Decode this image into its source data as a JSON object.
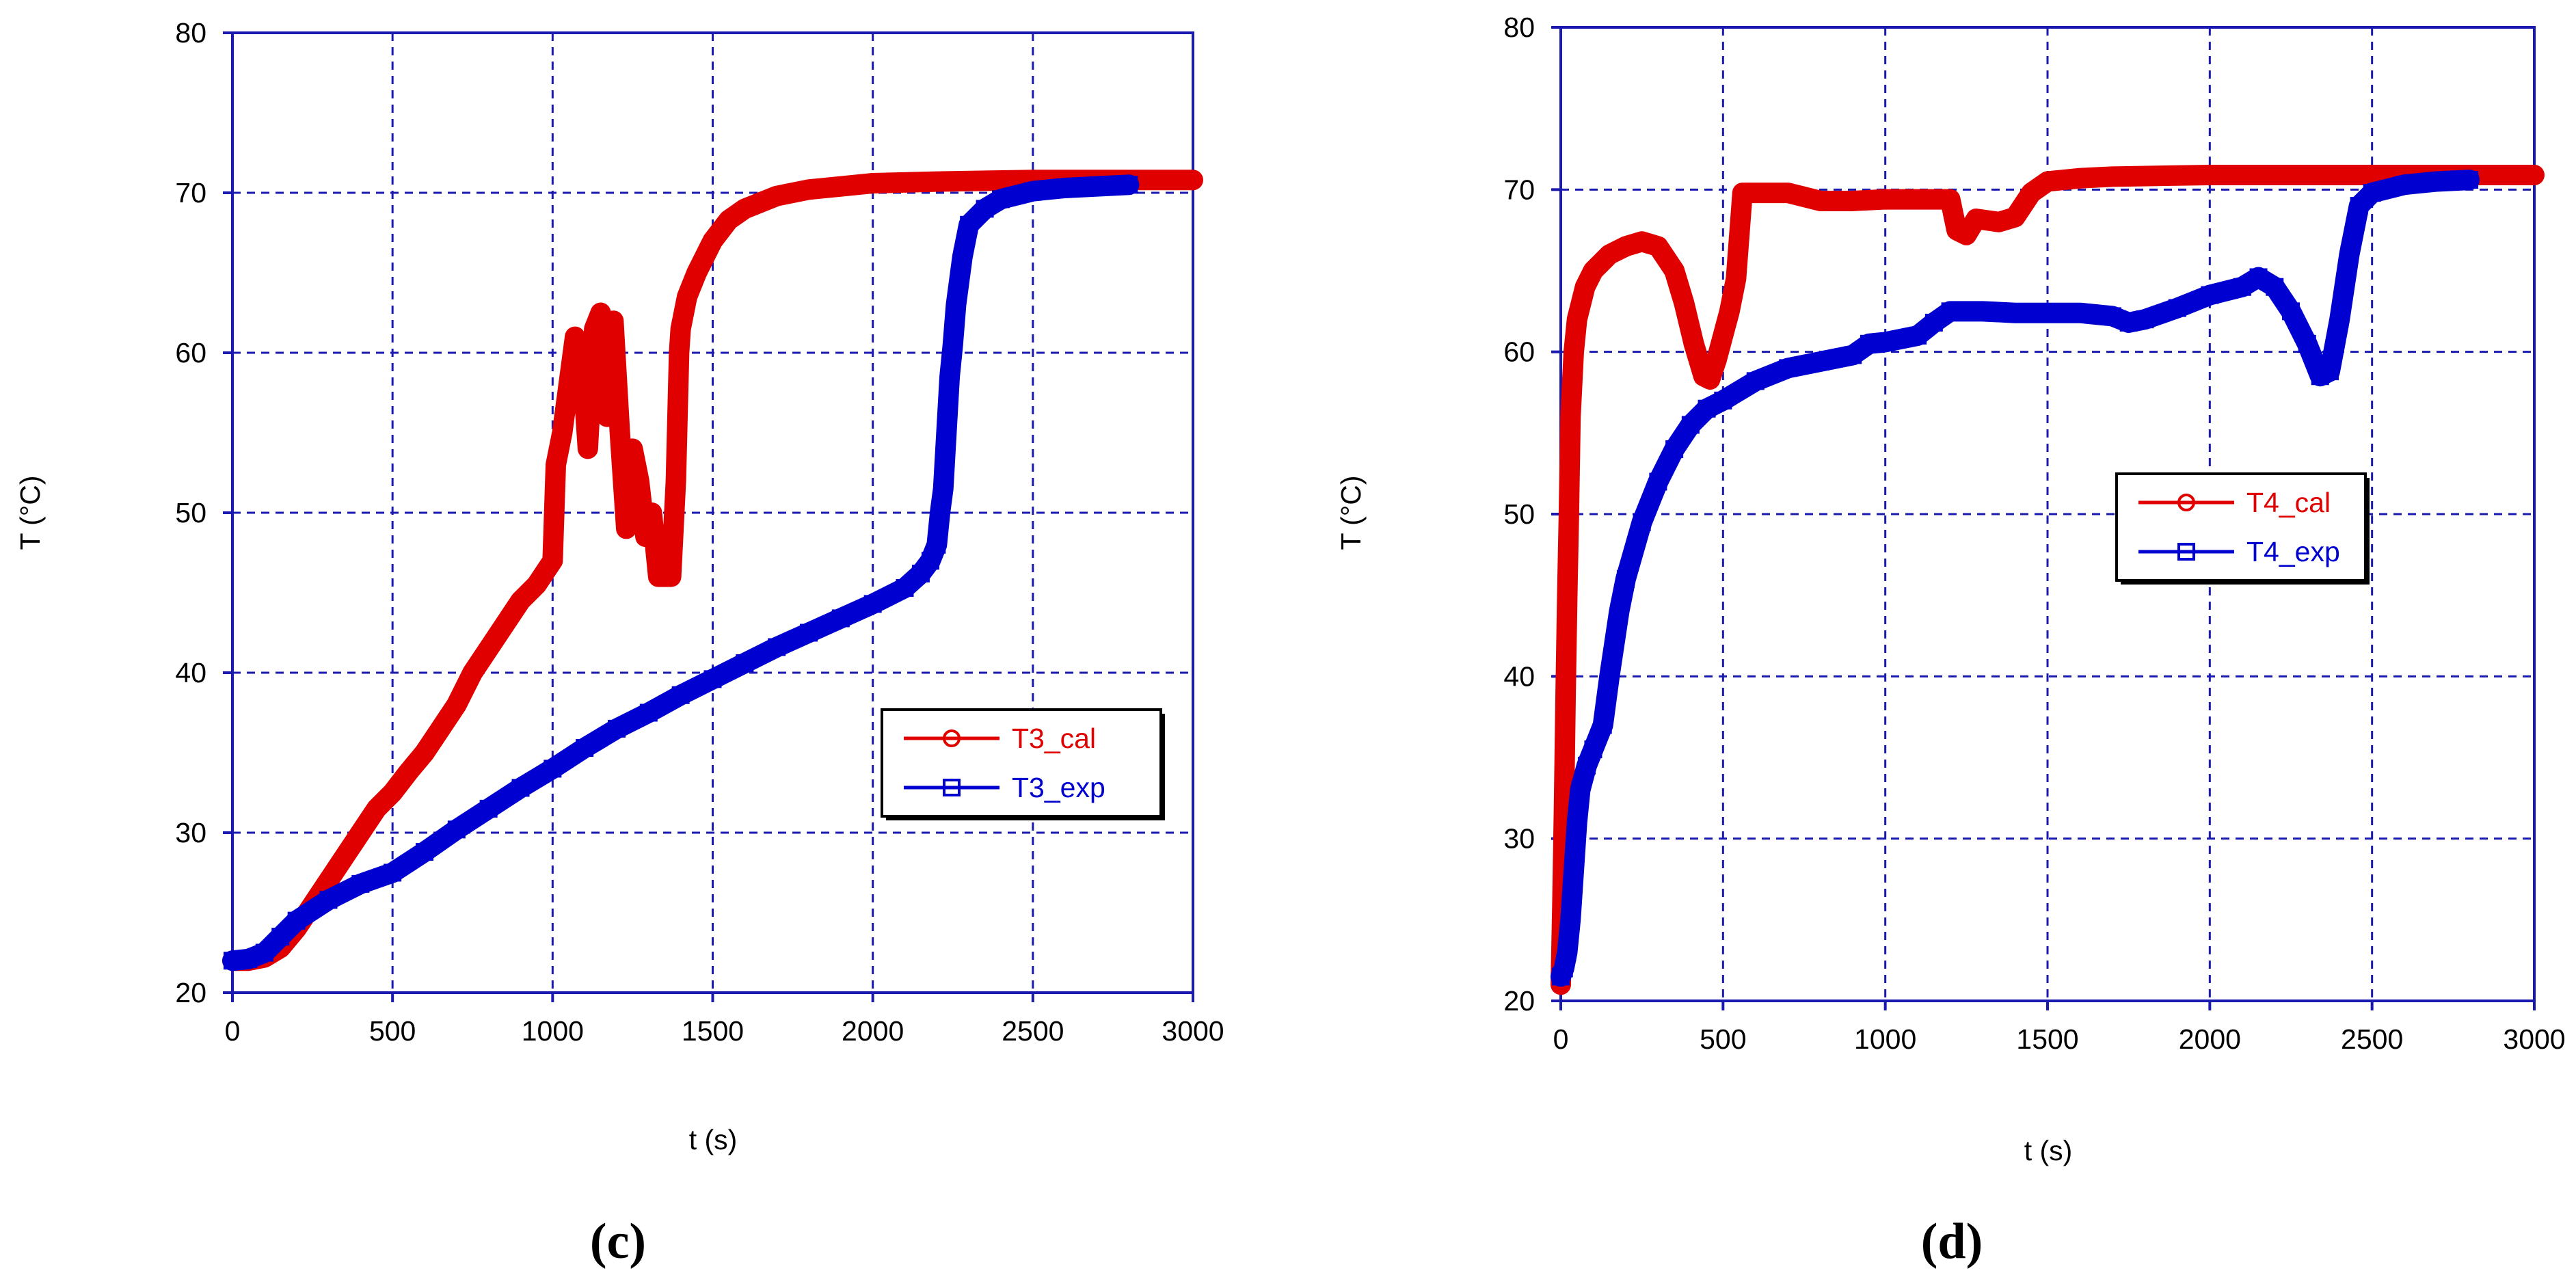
{
  "chart_data": [
    {
      "type": "line",
      "panel_label": "(c)",
      "xlabel": "t (s)",
      "ylabel": "T (°C)",
      "xlim": [
        0,
        3000
      ],
      "ylim": [
        20,
        80
      ],
      "xticks": [
        0,
        500,
        1000,
        1500,
        2000,
        2500,
        3000
      ],
      "yticks": [
        20,
        30,
        40,
        50,
        60,
        70,
        80
      ],
      "grid": true,
      "legend_position": "lower-right",
      "series": [
        {
          "name": "T3_cal",
          "color": "#e00000",
          "marker": "circle",
          "x": [
            0,
            50,
            100,
            150,
            200,
            250,
            300,
            350,
            400,
            450,
            500,
            550,
            600,
            650,
            700,
            750,
            800,
            850,
            900,
            950,
            1000,
            1010,
            1030,
            1050,
            1070,
            1090,
            1110,
            1130,
            1150,
            1170,
            1190,
            1210,
            1230,
            1250,
            1270,
            1290,
            1310,
            1330,
            1350,
            1370,
            1385,
            1395,
            1400,
            1420,
            1450,
            1500,
            1550,
            1600,
            1700,
            1800,
            1900,
            2000,
            2200,
            2500,
            2800,
            3000
          ],
          "y": [
            22.0,
            22.0,
            22.2,
            22.8,
            24.0,
            25.5,
            27.0,
            28.5,
            30.0,
            31.5,
            32.5,
            33.8,
            35.0,
            36.5,
            38.0,
            40.0,
            41.5,
            43.0,
            44.5,
            45.5,
            47.0,
            53.0,
            55.0,
            58.0,
            61.0,
            60.0,
            54.0,
            61.5,
            62.5,
            56.0,
            62.0,
            55.0,
            49.0,
            54.0,
            52.0,
            48.5,
            50.0,
            46.0,
            46.0,
            46.0,
            52.0,
            60.0,
            61.5,
            63.5,
            65.0,
            67.0,
            68.3,
            69.0,
            69.8,
            70.2,
            70.4,
            70.6,
            70.7,
            70.8,
            70.8,
            70.8
          ]
        },
        {
          "name": "T3_exp",
          "color": "#0000d0",
          "marker": "square",
          "x": [
            0,
            50,
            100,
            150,
            200,
            300,
            400,
            500,
            600,
            700,
            800,
            900,
            1000,
            1100,
            1200,
            1300,
            1400,
            1500,
            1600,
            1700,
            1800,
            1900,
            2000,
            2100,
            2150,
            2180,
            2200,
            2210,
            2220,
            2230,
            2240,
            2250,
            2260,
            2280,
            2300,
            2350,
            2400,
            2500,
            2600,
            2700,
            2800
          ],
          "y": [
            22.0,
            22.1,
            22.5,
            23.5,
            24.5,
            25.8,
            26.8,
            27.5,
            28.8,
            30.2,
            31.5,
            32.8,
            34.0,
            35.3,
            36.5,
            37.5,
            38.6,
            39.6,
            40.6,
            41.6,
            42.5,
            43.4,
            44.3,
            45.3,
            46.2,
            47.0,
            48.0,
            50.0,
            51.5,
            55.0,
            58.5,
            60.5,
            63.0,
            66.0,
            68.0,
            69.0,
            69.6,
            70.1,
            70.3,
            70.4,
            70.5
          ]
        }
      ]
    },
    {
      "type": "line",
      "panel_label": "(d)",
      "xlabel": "t (s)",
      "ylabel": "T (°C)",
      "xlim": [
        0,
        3000
      ],
      "ylim": [
        20,
        80
      ],
      "xticks": [
        0,
        500,
        1000,
        1500,
        2000,
        2500,
        3000
      ],
      "yticks": [
        20,
        30,
        40,
        50,
        60,
        70,
        80
      ],
      "grid": true,
      "legend_position": "middle-right",
      "series": [
        {
          "name": "T4_cal",
          "color": "#e00000",
          "marker": "circle",
          "x": [
            0,
            5,
            10,
            15,
            20,
            25,
            30,
            40,
            50,
            75,
            100,
            150,
            200,
            250,
            300,
            350,
            380,
            410,
            440,
            460,
            480,
            500,
            520,
            540,
            560,
            600,
            700,
            800,
            900,
            1000,
            1100,
            1200,
            1220,
            1250,
            1280,
            1350,
            1400,
            1450,
            1500,
            1600,
            1700,
            2000,
            2500,
            3000
          ],
          "y": [
            21.0,
            26.0,
            32.0,
            39.0,
            45.0,
            50.0,
            56.0,
            60.0,
            62.0,
            64.0,
            65.0,
            66.0,
            66.5,
            66.8,
            66.5,
            65.0,
            63.0,
            60.5,
            58.5,
            58.3,
            59.5,
            61.0,
            62.5,
            64.5,
            69.8,
            69.8,
            69.8,
            69.3,
            69.3,
            69.4,
            69.4,
            69.4,
            67.5,
            67.2,
            68.2,
            68.0,
            68.3,
            69.8,
            70.5,
            70.7,
            70.8,
            70.9,
            70.9,
            70.9
          ]
        },
        {
          "name": "T4_exp",
          "color": "#0000d0",
          "marker": "square",
          "x": [
            0,
            10,
            20,
            30,
            40,
            50,
            60,
            80,
            100,
            130,
            150,
            180,
            200,
            250,
            300,
            350,
            400,
            450,
            500,
            600,
            700,
            800,
            900,
            950,
            1000,
            1100,
            1150,
            1200,
            1250,
            1300,
            1400,
            1500,
            1600,
            1700,
            1750,
            1800,
            1900,
            2000,
            2100,
            2150,
            2200,
            2250,
            2300,
            2340,
            2370,
            2400,
            2430,
            2460,
            2500,
            2600,
            2700,
            2800
          ],
          "y": [
            21.5,
            22.0,
            23.0,
            25.0,
            28.0,
            31.0,
            33.0,
            34.5,
            35.5,
            37.0,
            40.0,
            44.0,
            46.0,
            49.5,
            52.0,
            54.0,
            55.5,
            56.5,
            57.0,
            58.2,
            59.0,
            59.4,
            59.8,
            60.5,
            60.6,
            61.0,
            61.8,
            62.5,
            62.5,
            62.5,
            62.4,
            62.4,
            62.4,
            62.2,
            61.8,
            62.0,
            62.7,
            63.5,
            64.0,
            64.6,
            64.0,
            62.5,
            60.5,
            58.5,
            58.8,
            62.0,
            66.0,
            69.0,
            69.8,
            70.3,
            70.5,
            70.6
          ]
        }
      ]
    }
  ]
}
